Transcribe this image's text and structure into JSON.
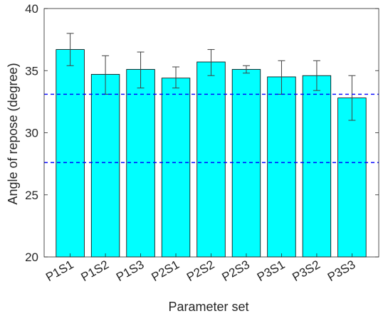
{
  "chart_data": {
    "type": "bar",
    "xlabel": "Parameter set",
    "ylabel": "Angle of repose (degree)",
    "ylim": [
      20,
      40
    ],
    "yticks": [
      20,
      25,
      30,
      35,
      40
    ],
    "grid": false,
    "categories": [
      "P1S1",
      "P1S2",
      "P1S3",
      "P2S1",
      "P2S2",
      "P2S3",
      "P3S1",
      "P3S2",
      "P3S3"
    ],
    "values": [
      36.7,
      34.7,
      35.1,
      34.4,
      35.7,
      35.1,
      34.5,
      34.6,
      32.8
    ],
    "error_low": [
      35.4,
      33.1,
      33.6,
      33.6,
      34.6,
      34.8,
      33.1,
      33.4,
      31.0
    ],
    "error_high": [
      38.0,
      36.2,
      36.5,
      35.3,
      36.7,
      35.4,
      35.8,
      35.8,
      34.6
    ],
    "reference_lines": [
      33.1,
      27.6
    ],
    "colors": {
      "bar_fill": "#00FFFF",
      "bar_edge": "#000000",
      "error_bar": "#404040",
      "reference_line": "#0000FF",
      "axis": "#262626"
    }
  }
}
